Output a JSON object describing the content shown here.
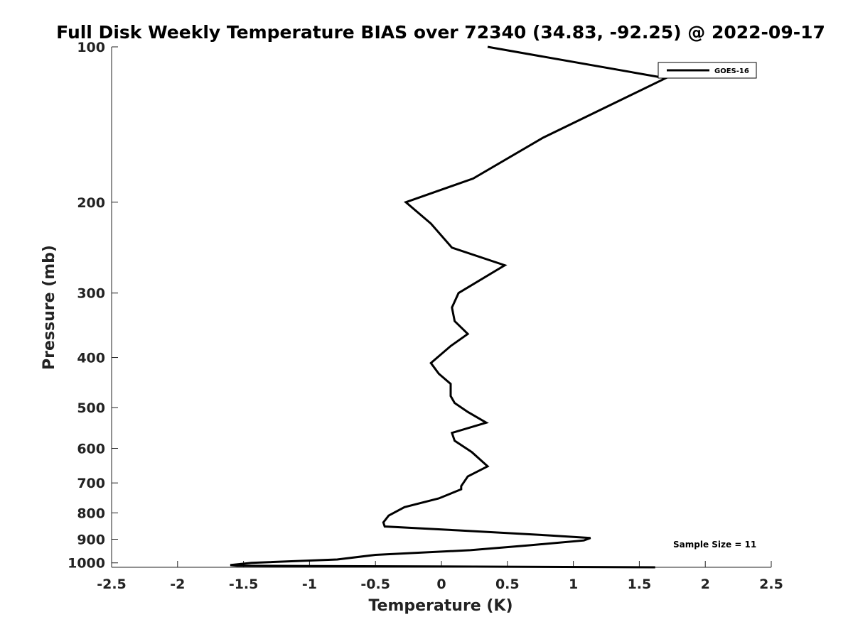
{
  "chart_data": {
    "type": "line",
    "title": "Full Disk Weekly Temperature BIAS over 72340 (34.83, -92.25) @ 2022-09-17",
    "xlabel": "Temperature (K)",
    "ylabel": "Pressure (mb)",
    "xlim": [
      -2.5,
      2.5
    ],
    "ylim": [
      1000,
      100
    ],
    "y_scale": "log",
    "y_reversed": true,
    "grid": false,
    "legend_position": "top-right",
    "x_ticks": [
      "-2.5",
      "-2",
      "-1.5",
      "-1",
      "-0.5",
      "0",
      "0.5",
      "1",
      "1.5",
      "2",
      "2.5"
    ],
    "y_ticks": [
      "100",
      "200",
      "300",
      "400",
      "500",
      "600",
      "700",
      "800",
      "900",
      "1000"
    ],
    "line_color": "#000000",
    "series": [
      {
        "name": "GOES-16",
        "x": [
          0.35,
          1.7,
          0.77,
          0.24,
          -0.27,
          -0.08,
          0.08,
          0.48,
          0.13,
          0.08,
          0.1,
          0.2,
          0.07,
          -0.08,
          -0.02,
          0.07,
          0.07,
          0.1,
          0.2,
          0.34,
          0.08,
          0.1,
          0.23,
          0.35,
          0.2,
          0.15,
          0.15,
          -0.02,
          -0.28,
          -0.4,
          -0.44,
          -0.43,
          0.13,
          0.83,
          1.13,
          1.08,
          0.66,
          0.22,
          -0.5,
          -0.79,
          -1.44,
          -1.6,
          -1.55,
          1.62
        ],
        "y": [
          100,
          115,
          150,
          180,
          200,
          220,
          245,
          265,
          300,
          320,
          340,
          360,
          380,
          410,
          430,
          450,
          475,
          490,
          510,
          535,
          560,
          580,
          610,
          650,
          680,
          710,
          720,
          750,
          780,
          810,
          835,
          850,
          865,
          885,
          895,
          905,
          925,
          945,
          965,
          985,
          1000,
          1010,
          1013,
          1020
        ]
      }
    ],
    "annotation": "Sample Size = 11"
  }
}
